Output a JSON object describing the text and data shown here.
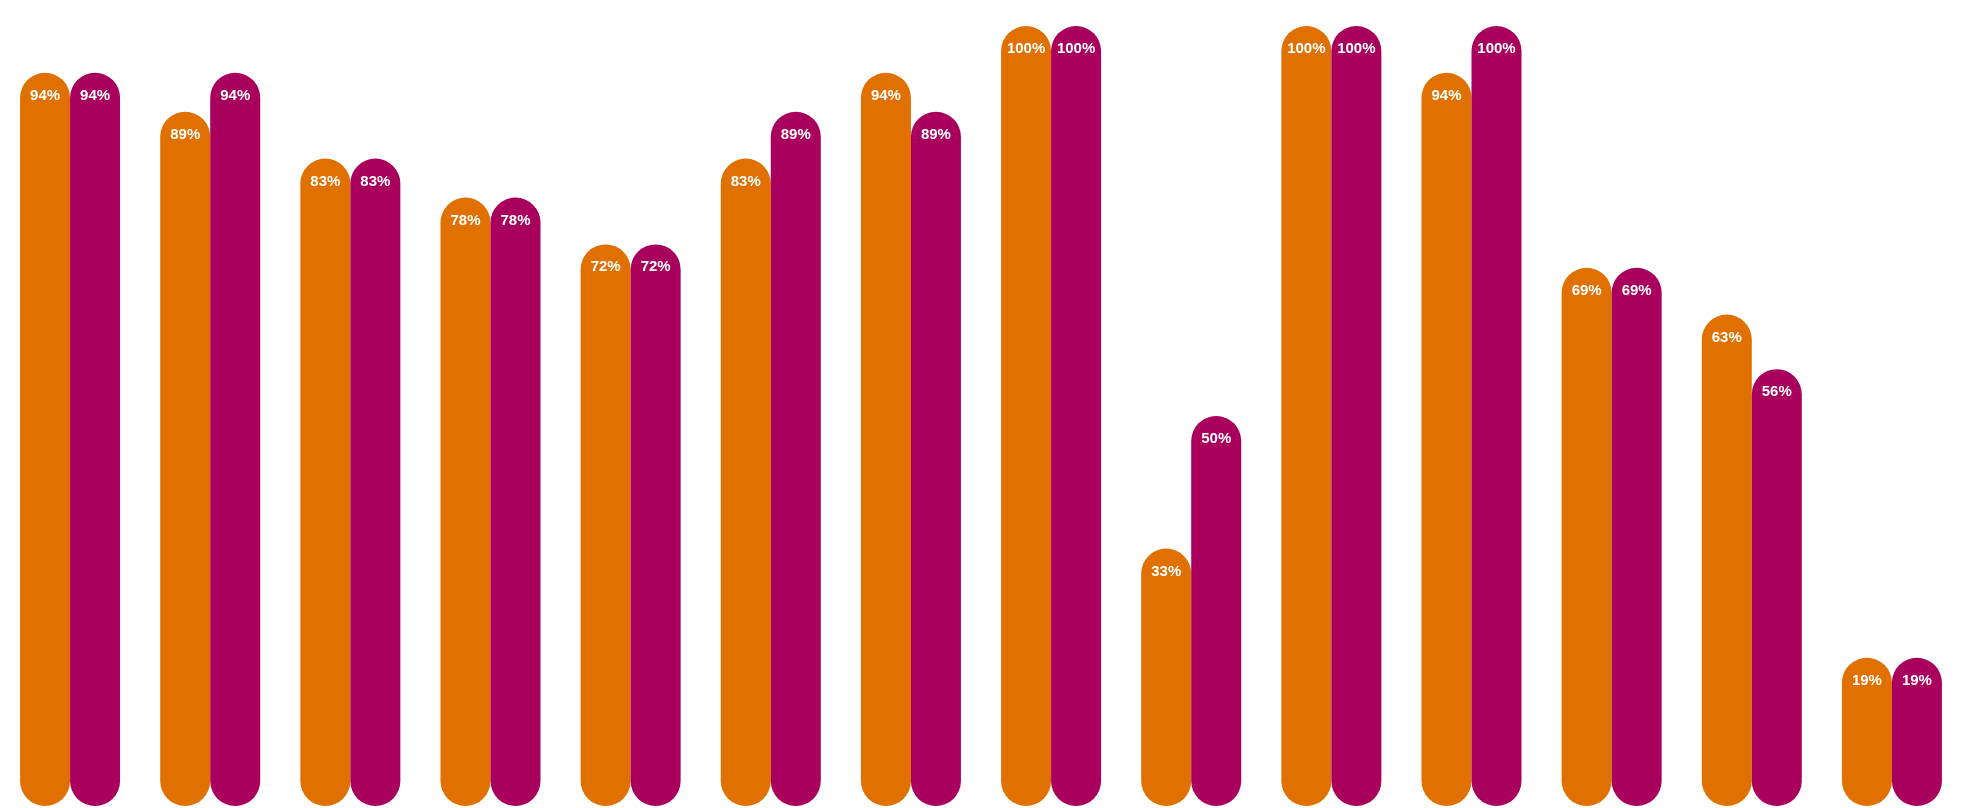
{
  "chart_data": {
    "type": "bar",
    "categories": [
      null,
      null,
      null,
      null,
      null,
      null,
      null,
      null,
      null,
      null,
      null,
      null,
      null,
      null
    ],
    "series": [
      {
        "color": "#e07000",
        "values": [
          94,
          89,
          83,
          78,
          72,
          83,
          94,
          100,
          33,
          100,
          94,
          69,
          63,
          19
        ],
        "value_labels": [
          "94%",
          "89%",
          "83%",
          "78%",
          "72%",
          "83%",
          "94%",
          "100%",
          "33%",
          "100%",
          "94%",
          "69%",
          "63%",
          "19%"
        ]
      },
      {
        "color": "#a8005c",
        "values": [
          94,
          94,
          83,
          78,
          72,
          89,
          89,
          100,
          50,
          100,
          100,
          69,
          56,
          19
        ],
        "value_labels": [
          "94%",
          "94%",
          "83%",
          "78%",
          "72%",
          "89%",
          "89%",
          "100%",
          "50%",
          "100%",
          "100%",
          "69%",
          "56%",
          "19%"
        ]
      }
    ],
    "grid": false
  }
}
